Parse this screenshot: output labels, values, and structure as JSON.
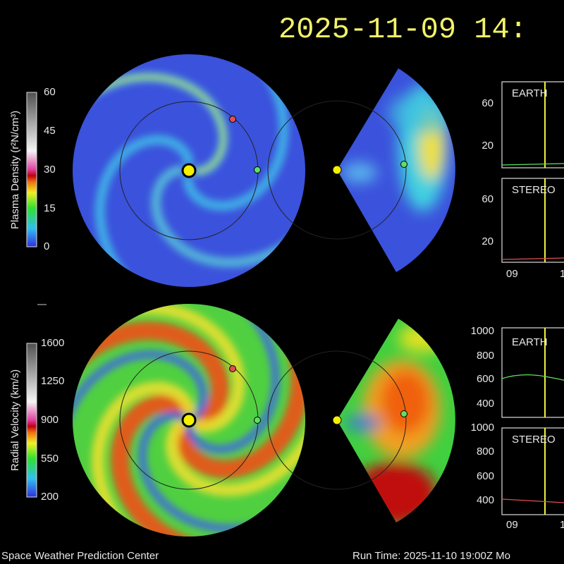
{
  "header": {
    "timestamp": "2025-11-09 14:"
  },
  "density": {
    "colorbar_label": "Plasma Density (r²N/cm³)",
    "colorbar_ticks": [
      "60",
      "45",
      "30",
      "15",
      "0"
    ],
    "panels": [
      {
        "label": "EARTH",
        "y_ticks": [
          "60",
          "20"
        ]
      },
      {
        "label": "STEREO",
        "y_ticks": [
          "60",
          "20"
        ]
      }
    ],
    "x_ticks": [
      "09",
      "1"
    ]
  },
  "velocity": {
    "colorbar_label": "Radial Velocity (km/s)",
    "colorbar_ticks": [
      "1600",
      "1250",
      "900",
      "550",
      "200"
    ],
    "panels": [
      {
        "label": "EARTH",
        "y_ticks": [
          "1000",
          "800",
          "600",
          "400"
        ]
      },
      {
        "label": "STEREO",
        "y_ticks": [
          "1000",
          "800",
          "600",
          "400"
        ]
      }
    ],
    "x_ticks": [
      "09",
      "1"
    ]
  },
  "footer": {
    "left": "Space Weather Prediction Center",
    "right": "Run Time: 2025-11-10 19:00Z  Mo"
  }
}
